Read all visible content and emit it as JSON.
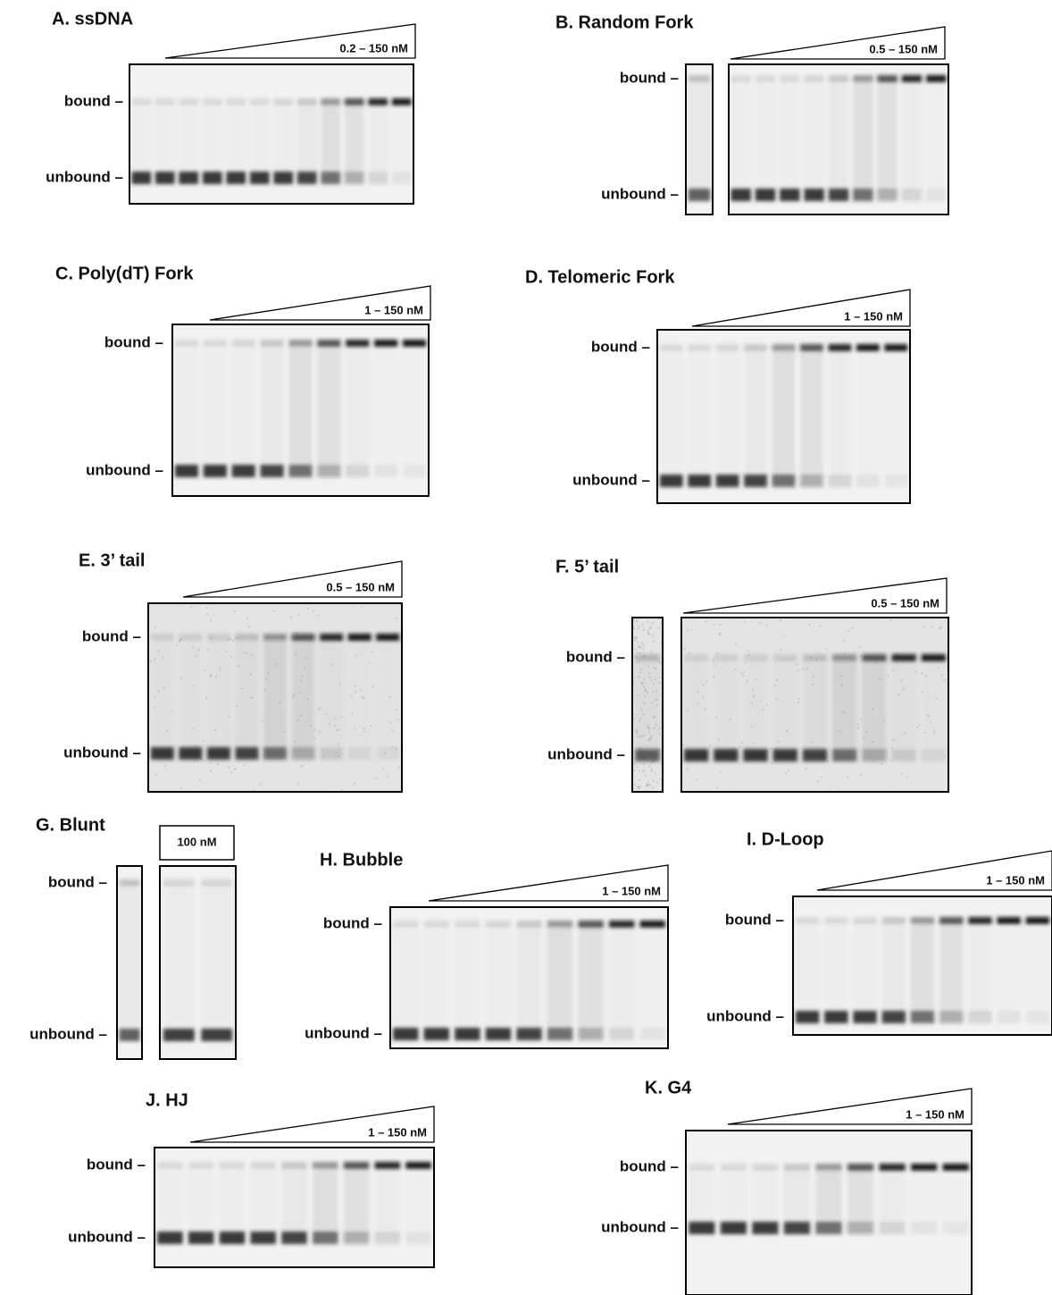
{
  "panels": [
    {
      "title": "A. ssDNA",
      "range": "0.2 – 150 nM",
      "bound": "bound –",
      "unbound": "unbound –"
    },
    {
      "title": "B. Random Fork",
      "range": "0.5 – 150 nM",
      "bound": "bound –",
      "unbound": "unbound –"
    },
    {
      "title": "C. Poly(dT) Fork",
      "range": "1 – 150 nM",
      "bound": "bound –",
      "unbound": "unbound –"
    },
    {
      "title": "D. Telomeric Fork",
      "range": "1 – 150 nM",
      "bound": "bound –",
      "unbound": "unbound –"
    },
    {
      "title": "E. 3’ tail",
      "range": "0.5 – 150 nM",
      "bound": "bound –",
      "unbound": "unbound –"
    },
    {
      "title": "F. 5’ tail",
      "range": "0.5 – 150 nM",
      "bound": "bound –",
      "unbound": "unbound –"
    },
    {
      "title": "G. Blunt",
      "range": "100 nM",
      "bound": "bound –",
      "unbound": "unbound –"
    },
    {
      "title": "H. Bubble",
      "range": "1 – 150 nM",
      "bound": "bound –",
      "unbound": "unbound –"
    },
    {
      "title": "I. D-Loop",
      "range": "1 – 150 nM",
      "bound": "bound –",
      "unbound": "unbound –"
    },
    {
      "title": "J. HJ",
      "range": "1 – 150 nM",
      "bound": "bound –",
      "unbound": "unbound –"
    },
    {
      "title": "K. G4",
      "range": "1 – 150 nM",
      "bound": "bound –",
      "unbound": "unbound –"
    }
  ]
}
